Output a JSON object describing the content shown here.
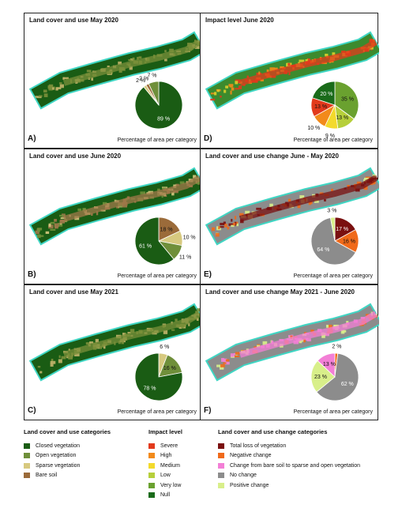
{
  "panels": [
    {
      "id": "A",
      "title": "Land cover and use May 2020",
      "letter": "A)",
      "caption": "Percentage of area per category",
      "map_base": "#1a5c14",
      "map_accents": [
        "#7a8f3a",
        "#c2b46a"
      ],
      "pie": {
        "slices": [
          {
            "value": 89,
            "color": "#1a5c14",
            "label": "89 %"
          },
          {
            "value": 2,
            "color": "#d7c97f",
            "label": "2 %"
          },
          {
            "value": 2,
            "color": "#9b6b3a",
            "label": "2 %"
          },
          {
            "value": 7,
            "color": "#6f8f3a",
            "label": "7 %"
          }
        ]
      }
    },
    {
      "id": "D",
      "title": "Impact level June 2020",
      "letter": "D)",
      "caption": "Percentage of area per category",
      "map_base": "#3c8a2e",
      "map_accents": [
        "#e23a1c",
        "#f28a1a",
        "#d8cf2c"
      ],
      "pie": {
        "slices": [
          {
            "value": 35,
            "color": "#6aa12f",
            "label": "35 %"
          },
          {
            "value": 13,
            "color": "#b6cf3a",
            "label": "13 %"
          },
          {
            "value": 9,
            "color": "#f3da2c",
            "label": "9 %"
          },
          {
            "value": 10,
            "color": "#f28a1a",
            "label": "10 %"
          },
          {
            "value": 13,
            "color": "#e23a1c",
            "label": "13 %"
          },
          {
            "value": 20,
            "color": "#1a6b1a",
            "label": "20 %"
          }
        ]
      }
    },
    {
      "id": "B",
      "title": "Land cover and use June 2020",
      "letter": "B)",
      "caption": "Percentage of area per category",
      "map_base": "#1a5c14",
      "map_accents": [
        "#a0784a",
        "#d7c97f",
        "#6f8f3a"
      ],
      "pie": {
        "slices": [
          {
            "value": 18,
            "color": "#9b6b3a",
            "label": "18 %"
          },
          {
            "value": 10,
            "color": "#d7c97f",
            "label": "10 %"
          },
          {
            "value": 11,
            "color": "#6f8f3a",
            "label": "11 %"
          },
          {
            "value": 61,
            "color": "#1a5c14",
            "label": "61 %"
          }
        ]
      }
    },
    {
      "id": "E",
      "title": "Land cover and use change June - May 2020",
      "letter": "E)",
      "caption": "Percentage of area per category",
      "map_base": "#8c8c8c",
      "map_accents": [
        "#7a1010",
        "#f06a1a",
        "#d8ef8a"
      ],
      "pie": {
        "slices": [
          {
            "value": 17,
            "color": "#7a1010",
            "label": "17 %"
          },
          {
            "value": 16,
            "color": "#f06a1a",
            "label": "16 %"
          },
          {
            "value": 64,
            "color": "#8c8c8c",
            "label": "64 %"
          },
          {
            "value": 3,
            "color": "#d8ef8a",
            "label": "3 %"
          }
        ]
      }
    },
    {
      "id": "C",
      "title": "Land cover and use May 2021",
      "letter": "C)",
      "caption": "Percentage of area per category",
      "map_base": "#1a5c14",
      "map_accents": [
        "#7a8f3a",
        "#c2b46a"
      ],
      "pie": {
        "slices": [
          {
            "value": 6,
            "color": "#d7c97f",
            "label": "6 %"
          },
          {
            "value": 16,
            "color": "#6f8f3a",
            "label": "16 %"
          },
          {
            "value": 78,
            "color": "#1a5c14",
            "label": "78 %"
          }
        ]
      }
    },
    {
      "id": "F",
      "title": "Land cover and use change May 2021 - June 2020",
      "letter": "F)",
      "caption": "Percentage of area per category",
      "map_base": "#8c8c8c",
      "map_accents": [
        "#f37fd6",
        "#d8ef8a",
        "#f06a1a"
      ],
      "pie": {
        "slices": [
          {
            "value": 2,
            "color": "#f06a1a",
            "label": "2 %"
          },
          {
            "value": 62,
            "color": "#8c8c8c",
            "label": "62 %"
          },
          {
            "value": 23,
            "color": "#d8ef8a",
            "label": "23 %"
          },
          {
            "value": 13,
            "color": "#f37fd6",
            "label": "13 %"
          }
        ]
      }
    }
  ],
  "legends": [
    {
      "title": "Land cover and use categories",
      "items": [
        {
          "label": "Closed vegetation",
          "color": "#1a5c14"
        },
        {
          "label": "Open vegetation",
          "color": "#6f8f3a"
        },
        {
          "label": "Sparse vegetation",
          "color": "#d7c97f"
        },
        {
          "label": "Bare soil",
          "color": "#9b6b3a"
        }
      ]
    },
    {
      "title": "Impact level",
      "items": [
        {
          "label": "Severe",
          "color": "#e23a1c"
        },
        {
          "label": "High",
          "color": "#f28a1a"
        },
        {
          "label": "Medium",
          "color": "#f3da2c"
        },
        {
          "label": "Low",
          "color": "#b6cf3a"
        },
        {
          "label": "Very low",
          "color": "#6aa12f"
        },
        {
          "label": "Null",
          "color": "#1a6b1a"
        }
      ]
    },
    {
      "title": "Land cover and use change categories",
      "items": [
        {
          "label": "Total loss of vegetation",
          "color": "#7a1010"
        },
        {
          "label": "Negative change",
          "color": "#f06a1a"
        },
        {
          "label": "Change from bare soil to sparse and open vegetation",
          "color": "#f37fd6"
        },
        {
          "label": "No change",
          "color": "#8c8c8c"
        },
        {
          "label": "Positive change",
          "color": "#d8ef8a"
        }
      ]
    }
  ]
}
